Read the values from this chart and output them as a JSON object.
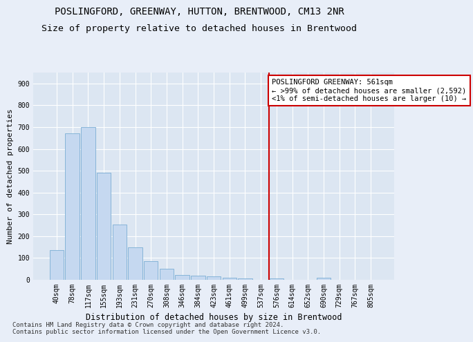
{
  "title": "POSLINGFORD, GREENWAY, HUTTON, BRENTWOOD, CM13 2NR",
  "subtitle": "Size of property relative to detached houses in Brentwood",
  "xlabel": "Distribution of detached houses by size in Brentwood",
  "ylabel": "Number of detached properties",
  "bar_labels": [
    "40sqm",
    "78sqm",
    "117sqm",
    "155sqm",
    "193sqm",
    "231sqm",
    "270sqm",
    "308sqm",
    "346sqm",
    "384sqm",
    "423sqm",
    "461sqm",
    "499sqm",
    "537sqm",
    "576sqm",
    "614sqm",
    "652sqm",
    "690sqm",
    "729sqm",
    "767sqm",
    "805sqm"
  ],
  "bar_values": [
    135,
    670,
    700,
    490,
    253,
    150,
    85,
    50,
    22,
    18,
    15,
    10,
    7,
    0,
    7,
    0,
    0,
    8,
    0,
    0,
    0
  ],
  "bar_color": "#c5d8f0",
  "bar_edge_color": "#7aadd4",
  "annotation_box_text": "POSLINGFORD GREENWAY: 561sqm\n← >99% of detached houses are smaller (2,592)\n<1% of semi-detached houses are larger (10) →",
  "annotation_box_color": "#cc0000",
  "vline_x_index": 14.0,
  "vline_color": "#cc0000",
  "ylim": [
    0,
    950
  ],
  "yticks": [
    0,
    100,
    200,
    300,
    400,
    500,
    600,
    700,
    800,
    900
  ],
  "background_color": "#e8eef8",
  "plot_bg_color": "#dce6f2",
  "footer_text": "Contains HM Land Registry data © Crown copyright and database right 2024.\nContains public sector information licensed under the Open Government Licence v3.0.",
  "title_fontsize": 10,
  "subtitle_fontsize": 9.5,
  "xlabel_fontsize": 8.5,
  "ylabel_fontsize": 8,
  "tick_fontsize": 7,
  "annotation_fontsize": 7.5,
  "footer_fontsize": 6.5
}
